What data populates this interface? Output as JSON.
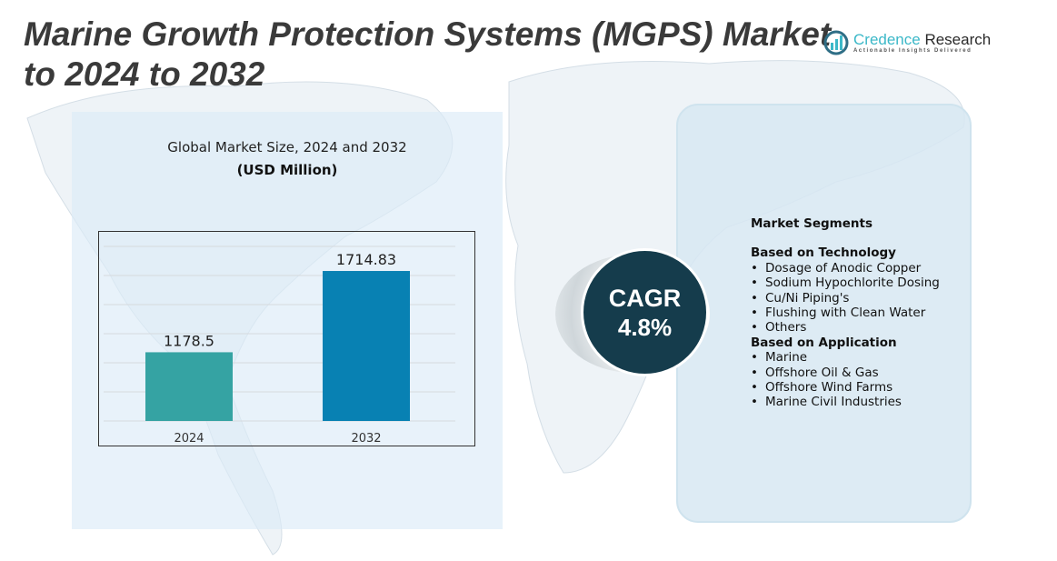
{
  "header": {
    "title": "Marine Growth Protection Systems (MGPS) Market to 2024 to 2032"
  },
  "logo": {
    "name_part1": "Credence",
    "name_part2": " Research",
    "tagline": "Actionable Insights Delivered"
  },
  "chart_data": {
    "type": "bar",
    "title": "Global Market Size, 2024 and 2032",
    "subtitle": "(USD Million)",
    "categories": [
      "2024",
      "2032"
    ],
    "values": [
      1178.5,
      1714.83
    ],
    "value_labels": [
      "1178.5",
      "1714.83"
    ],
    "colors": [
      "#35a3a3",
      "#0881b3"
    ],
    "ylim": [
      725,
      1925
    ],
    "grid": true,
    "xlabel": "",
    "ylabel": ""
  },
  "cagr": {
    "label": "CAGR",
    "value": "4.8%"
  },
  "segments": {
    "title": "Market Segments",
    "groups": [
      {
        "heading": "Based on Technology",
        "items": [
          "Dosage of Anodic Copper",
          "Sodium Hypochlorite Dosing",
          "Cu/Ni Piping's",
          "Flushing with Clean Water",
          "Others"
        ]
      },
      {
        "heading": "Based on Application",
        "items": [
          "Marine",
          "Offshore Oil & Gas",
          "Offshore Wind Farms",
          "Marine Civil Industries"
        ]
      }
    ]
  }
}
